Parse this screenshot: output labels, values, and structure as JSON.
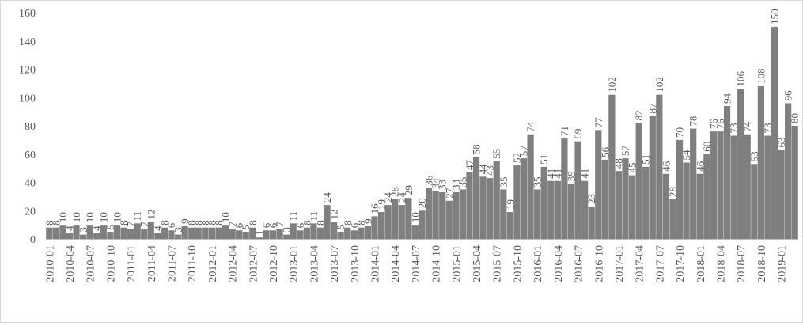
{
  "chart_data": {
    "type": "bar",
    "title": "",
    "xlabel": "",
    "ylabel": "",
    "ylim": [
      0,
      160
    ],
    "yticks": [
      0,
      20,
      40,
      60,
      80,
      100,
      120,
      140,
      160
    ],
    "grid": false,
    "legend": "none",
    "bar_color": "#7f7f7f",
    "axis_color": "#bfbfbf",
    "text_color": "#595959",
    "categories": [
      "2010-01",
      "2010-02",
      "2010-03",
      "2010-04",
      "2010-05",
      "2010-06",
      "2010-07",
      "2010-08",
      "2010-09",
      "2010-10",
      "2010-11",
      "2010-12",
      "2011-01",
      "2011-02",
      "2011-03",
      "2011-04",
      "2011-05",
      "2011-06",
      "2011-07",
      "2011-08",
      "2011-09",
      "2011-10",
      "2011-11",
      "2011-12",
      "2012-01",
      "2012-02",
      "2012-03",
      "2012-04",
      "2012-05",
      "2012-06",
      "2012-07",
      "2012-08",
      "2012-09",
      "2012-10",
      "2012-11",
      "2012-12",
      "2013-01",
      "2013-02",
      "2013-03",
      "2013-04",
      "2013-05",
      "2013-06",
      "2013-07",
      "2013-08",
      "2013-09",
      "2013-10",
      "2013-11",
      "2013-12",
      "2014-01",
      "2014-02",
      "2014-03",
      "2014-04",
      "2014-05",
      "2014-06",
      "2014-07",
      "2014-08",
      "2014-09",
      "2014-10",
      "2014-11",
      "2014-12",
      "2015-01",
      "2015-02",
      "2015-03",
      "2015-04",
      "2015-05",
      "2015-06",
      "2015-07",
      "2015-08",
      "2015-09",
      "2015-10",
      "2015-11",
      "2015-12",
      "2016-01",
      "2016-02",
      "2016-03",
      "2016-04",
      "2016-05",
      "2016-06",
      "2016-07",
      "2016-08",
      "2016-09",
      "2016-10",
      "2016-11",
      "2016-12",
      "2017-01",
      "2017-02",
      "2017-03",
      "2017-04",
      "2017-05",
      "2017-06",
      "2017-07",
      "2017-08",
      "2017-09",
      "2017-10",
      "2017-11",
      "2017-12",
      "2018-01",
      "2018-02",
      "2018-03",
      "2018-04",
      "2018-05",
      "2018-06",
      "2018-07",
      "2018-08",
      "2018-09",
      "2018-10",
      "2018-11",
      "2018-12",
      "2019-01",
      "2019-02",
      "2019-03"
    ],
    "shown_tick_labels": [
      "2010-01",
      "2010-04",
      "2010-07",
      "2010-10",
      "2011-01",
      "2011-04",
      "2011-07",
      "2011-10",
      "2012-01",
      "2012-04",
      "2012-07",
      "2012-10",
      "2013-01",
      "2013-04",
      "2013-07",
      "2013-10",
      "2014-01",
      "2014-04",
      "2014-07",
      "2014-10",
      "2015-01",
      "2015-04",
      "2015-07",
      "2015-10",
      "2016-01",
      "2016-04",
      "2016-07",
      "2016-10",
      "2017-01",
      "2017-04",
      "2017-07",
      "2017-10",
      "2018-01",
      "2018-04",
      "2018-07",
      "2018-10",
      "2019-01"
    ],
    "values": [
      8,
      8,
      10,
      4,
      10,
      3,
      10,
      4,
      10,
      5,
      10,
      8,
      7,
      11,
      7,
      12,
      4,
      8,
      6,
      3,
      9,
      8,
      8,
      8,
      8,
      8,
      10,
      7,
      6,
      5,
      8,
      1,
      6,
      6,
      7,
      3,
      11,
      6,
      8,
      11,
      8,
      24,
      12,
      5,
      8,
      6,
      8,
      9,
      16,
      19,
      24,
      28,
      24,
      29,
      10,
      20,
      36,
      34,
      33,
      27,
      33,
      35,
      47,
      58,
      44,
      43,
      55,
      35,
      19,
      52,
      57,
      74,
      35,
      51,
      41,
      41,
      71,
      39,
      69,
      41,
      23,
      77,
      56,
      102,
      48,
      57,
      45,
      82,
      51,
      87,
      102,
      46,
      28,
      70,
      54,
      78,
      46,
      60,
      76,
      76,
      94,
      73,
      106,
      74,
      53,
      108,
      73,
      150,
      63,
      96,
      80
    ]
  }
}
